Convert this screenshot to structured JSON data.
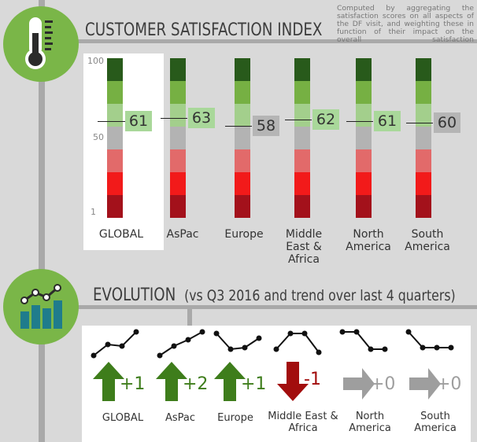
{
  "header_note": "Computed by aggregating the satisfaction scores on all aspects of the DF visit, and weighting these in function of their impact on the overall satisfaction",
  "csi": {
    "title": "CUSTOMER SATISFACTION INDEX",
    "icon": "thermometer-icon",
    "scale_ticks": [
      "100",
      "50",
      "1"
    ],
    "segment_colors": [
      "#285a1b",
      "#76b043",
      "#a3cf8c",
      "#b3b3b3",
      "#e26a6a",
      "#f21a1a",
      "#a3111b"
    ],
    "regions": [
      {
        "name": "GLOBAL",
        "value": "61",
        "highlight": "green"
      },
      {
        "name": "AsPac",
        "value": "63",
        "highlight": "green"
      },
      {
        "name": "Europe",
        "value": "58",
        "highlight": "grey"
      },
      {
        "name": "Middle East & Africa",
        "value": "62",
        "highlight": "green"
      },
      {
        "name": "North America",
        "value": "61",
        "highlight": "green"
      },
      {
        "name": "South America",
        "value": "60",
        "highlight": "grey"
      }
    ]
  },
  "evolution": {
    "title": "EVOLUTION",
    "subtitle": "(vs Q3 2016 and trend over last 4 quarters)",
    "icon": "bar-chart-trend-icon",
    "items": [
      {
        "name": "GLOBAL",
        "delta": "+1",
        "direction": "up",
        "trend": [
          4,
          2.6,
          2.8,
          1
        ]
      },
      {
        "name": "AsPac",
        "delta": "+2",
        "direction": "up",
        "trend": [
          4,
          2.8,
          2.0,
          1
        ]
      },
      {
        "name": "Europe",
        "delta": "+1",
        "direction": "up",
        "trend": [
          1.2,
          3.2,
          3.0,
          1.8
        ]
      },
      {
        "name": "Middle East & Africa",
        "delta": "-1",
        "direction": "down",
        "trend": [
          3.2,
          1.2,
          1.2,
          3.6
        ]
      },
      {
        "name": "North America",
        "delta": "+0",
        "direction": "flat",
        "trend": [
          1,
          1,
          3.2,
          3.2
        ]
      },
      {
        "name": "South America",
        "delta": "+0",
        "direction": "flat",
        "trend": [
          1,
          3,
          3,
          3
        ]
      }
    ],
    "colors": {
      "up": "#3e7d1b",
      "down": "#a20d0d",
      "flat": "#9e9e9e"
    }
  }
}
